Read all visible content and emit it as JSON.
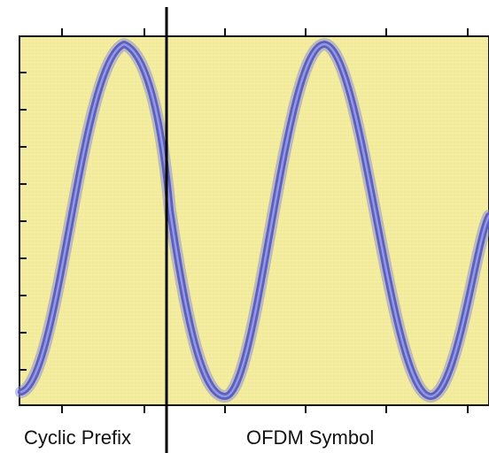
{
  "diagram": {
    "labels": {
      "left": "Cyclic Prefix",
      "right": "OFDM Symbol"
    },
    "colors": {
      "plot_background": "#f3ec9e",
      "plot_border": "#111111",
      "wave_stroke": "#5a5fc0",
      "wave_glow": "#8d90d8",
      "divider": "#000000"
    }
  }
}
